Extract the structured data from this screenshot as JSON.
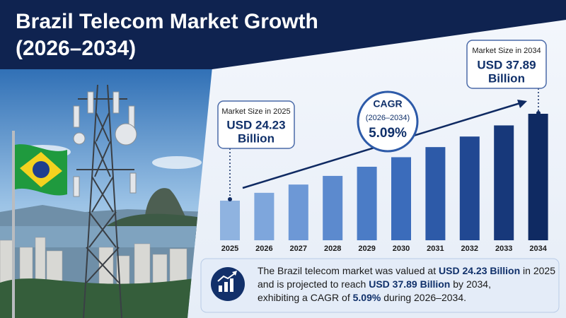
{
  "chart_data": {
    "type": "bar",
    "title": "Brazil Telecom Market Growth",
    "subtitle": "(2026–2034)",
    "categories": [
      "2025",
      "2026",
      "2027",
      "2028",
      "2029",
      "2030",
      "2031",
      "2032",
      "2033",
      "2034"
    ],
    "values": [
      24.23,
      25.46,
      26.76,
      28.12,
      29.56,
      31.06,
      32.65,
      34.31,
      36.06,
      37.89
    ],
    "colors": [
      "#8fb3e0",
      "#7ea6dc",
      "#6d98d6",
      "#5c8ace",
      "#4b7cc6",
      "#3b6cbb",
      "#2d5aa8",
      "#214892",
      "#17387a",
      "#0f2a62"
    ],
    "ylim": [
      18,
      38
    ],
    "grid": false,
    "annotations": {
      "start": {
        "label": "Market Size in 2025",
        "value": "USD 24.23",
        "unit": "Billion"
      },
      "end": {
        "label": "Market Size in 2034",
        "value": "USD 37.89",
        "unit": "Billion"
      },
      "cagr": {
        "label": "CAGR",
        "period": "(2026–2034)",
        "value": "5.09%"
      }
    },
    "summary": [
      [
        "The Brazil telecom market was valued at ",
        "USD 24.23 Billion",
        " in 2025"
      ],
      [
        "and is projected to reach ",
        "USD 37.89 Billion",
        " by 2034,"
      ],
      [
        "exhibiting a CAGR of ",
        "5.09%",
        " during 2026–2034."
      ]
    ]
  }
}
